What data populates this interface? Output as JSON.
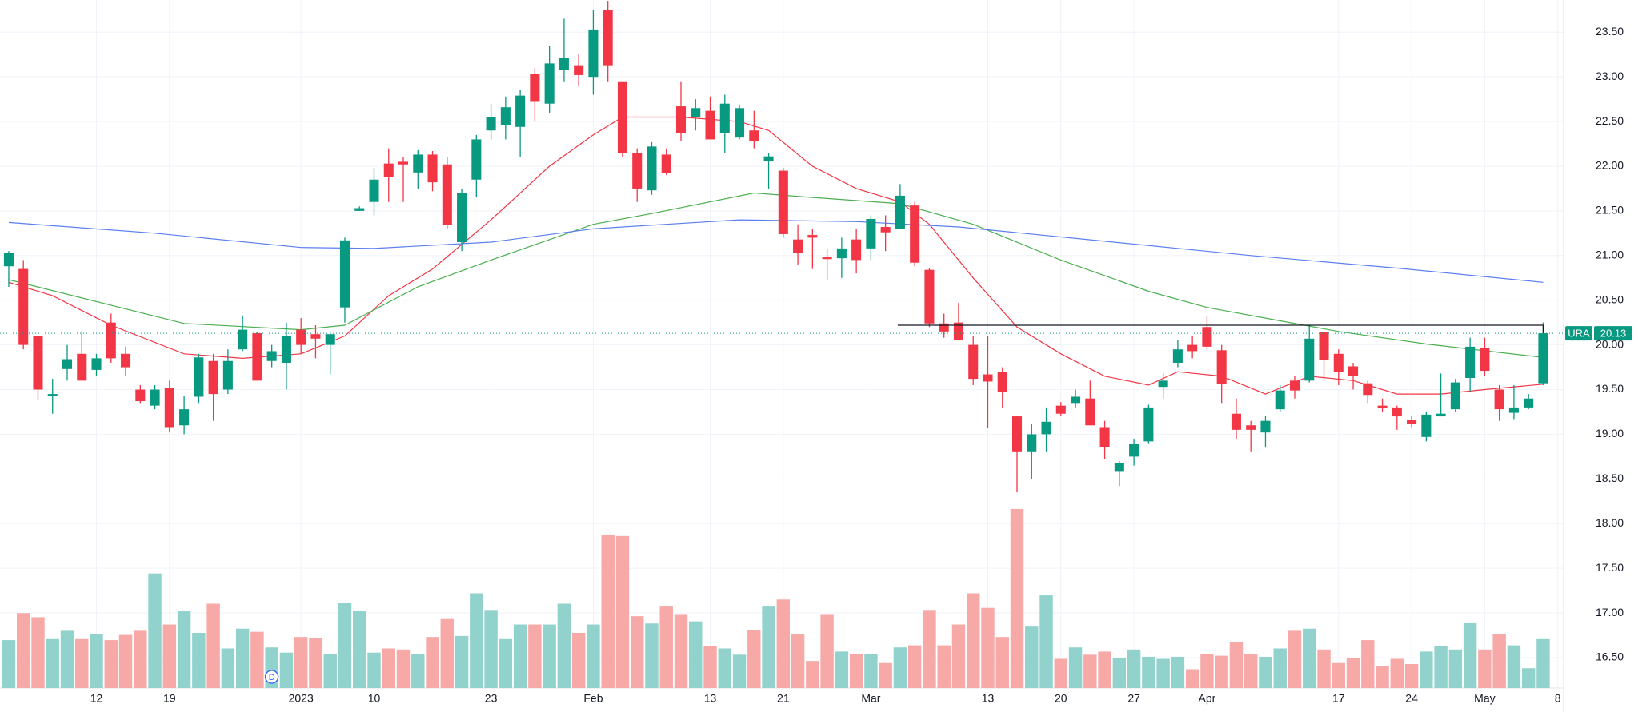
{
  "chart_data": {
    "type": "candlestick",
    "xlim": [
      -0.6,
      106.4
    ],
    "ylim": [
      16.16,
      23.86
    ],
    "vlim": [
      0,
      661
    ],
    "grid": true,
    "up_color": "#089981",
    "down_color": "#f23645",
    "volume_up_color": "#92d2cc",
    "volume_down_color": "#f7a9a7",
    "xticks": [
      {
        "value": 6,
        "label": "12"
      },
      {
        "value": 11,
        "label": "19"
      },
      {
        "value": 20,
        "label": "2023"
      },
      {
        "value": 25,
        "label": "10"
      },
      {
        "value": 33,
        "label": "23"
      },
      {
        "value": 40,
        "label": "Feb"
      },
      {
        "value": 48,
        "label": "13"
      },
      {
        "value": 53,
        "label": "21"
      },
      {
        "value": 59,
        "label": "Mar"
      },
      {
        "value": 67,
        "label": "13"
      },
      {
        "value": 72,
        "label": "20"
      },
      {
        "value": 77,
        "label": "27"
      },
      {
        "value": 82,
        "label": "Apr"
      },
      {
        "value": 91,
        "label": "17"
      },
      {
        "value": 96,
        "label": "24"
      },
      {
        "value": 101,
        "label": "May"
      },
      {
        "value": 106,
        "label": "8"
      }
    ],
    "yticks": [
      {
        "value": 16.5,
        "label": "16.50"
      },
      {
        "value": 17,
        "label": "17.00"
      },
      {
        "value": 17.5,
        "label": "17.50"
      },
      {
        "value": 18,
        "label": "18.00"
      },
      {
        "value": 18.5,
        "label": "18.50"
      },
      {
        "value": 19,
        "label": "19.00"
      },
      {
        "value": 19.5,
        "label": "19.50"
      },
      {
        "value": 20,
        "label": "20.00"
      },
      {
        "value": 20.5,
        "label": "20.50"
      },
      {
        "value": 21,
        "label": "21.00"
      },
      {
        "value": 21.5,
        "label": "21.50"
      },
      {
        "value": 22,
        "label": "22.00"
      },
      {
        "value": 22.5,
        "label": "22.50"
      },
      {
        "value": 23,
        "label": "23.00"
      },
      {
        "value": 23.5,
        "label": "23.50"
      }
    ],
    "open": [
      20.88,
      20.85,
      20.1,
      19.43,
      19.73,
      19.9,
      19.72,
      20.25,
      19.9,
      19.5,
      19.32,
      19.52,
      19.1,
      19.42,
      19.82,
      19.5,
      19.95,
      20.13,
      19.82,
      19.8,
      20.17,
      20.12,
      20.0,
      20.42,
      21.5,
      21.6,
      22.03,
      22.05,
      21.93,
      22.13,
      22.02,
      21.15,
      21.85,
      22.4,
      22.46,
      22.44,
      23.03,
      22.7,
      23.08,
      23.13,
      23.0,
      23.75,
      22.95,
      22.15,
      21.73,
      22.13,
      22.67,
      22.55,
      22.62,
      22.37,
      22.32,
      22.4,
      22.06,
      21.95,
      21.18,
      21.23,
      20.98,
      20.97,
      21.18,
      21.08,
      21.32,
      21.3,
      21.56,
      20.84,
      20.24,
      20.25,
      20.0,
      19.67,
      19.7,
      19.2,
      18.8,
      19.0,
      19.32,
      19.35,
      19.4,
      19.08,
      18.58,
      18.75,
      18.92,
      19.53,
      19.8,
      20.0,
      20.2,
      19.94,
      19.23,
      19.1,
      19.02,
      19.28,
      19.6,
      19.6,
      20.14,
      19.9,
      19.76,
      19.57,
      19.32,
      19.3,
      19.16,
      18.97,
      19.2,
      19.28,
      19.63,
      19.97,
      19.5,
      19.24,
      19.3,
      19.57
    ],
    "high": [
      21.05,
      20.95,
      20.1,
      19.62,
      20.0,
      20.15,
      19.9,
      20.35,
      19.98,
      19.55,
      19.55,
      19.6,
      19.43,
      19.9,
      19.9,
      19.95,
      20.33,
      20.15,
      20.0,
      20.25,
      20.3,
      20.22,
      20.15,
      21.2,
      21.55,
      21.98,
      22.2,
      22.1,
      22.18,
      22.17,
      22.1,
      21.75,
      22.35,
      22.7,
      22.78,
      22.85,
      23.1,
      23.35,
      23.65,
      23.25,
      23.75,
      23.85,
      22.95,
      22.2,
      22.27,
      22.2,
      22.95,
      22.75,
      22.78,
      22.8,
      22.68,
      22.62,
      22.15,
      21.98,
      21.35,
      21.3,
      21.08,
      21.2,
      21.3,
      21.45,
      21.45,
      21.8,
      21.6,
      20.86,
      20.35,
      20.47,
      20.1,
      20.1,
      19.75,
      19.2,
      19.12,
      19.3,
      19.36,
      19.5,
      19.6,
      19.15,
      18.7,
      18.95,
      19.33,
      19.68,
      20.05,
      20.1,
      20.33,
      20.0,
      19.4,
      19.15,
      19.2,
      19.55,
      19.65,
      20.22,
      20.15,
      19.95,
      19.8,
      19.6,
      19.4,
      19.32,
      19.2,
      19.25,
      19.68,
      19.62,
      20.08,
      20.08,
      19.55,
      19.55,
      19.45,
      20.25
    ],
    "low": [
      20.65,
      19.95,
      19.38,
      19.23,
      19.6,
      19.6,
      19.65,
      19.8,
      19.65,
      19.35,
      19.28,
      19.02,
      19.0,
      19.35,
      19.15,
      19.45,
      19.93,
      19.6,
      19.75,
      19.5,
      19.9,
      19.85,
      19.67,
      20.25,
      21.5,
      21.45,
      21.6,
      21.6,
      21.75,
      21.72,
      21.3,
      21.05,
      21.65,
      22.3,
      22.3,
      22.1,
      22.5,
      22.6,
      22.95,
      22.9,
      22.8,
      22.95,
      22.1,
      21.6,
      21.68,
      21.9,
      22.28,
      22.4,
      22.3,
      22.15,
      22.3,
      22.2,
      21.75,
      21.2,
      20.9,
      20.85,
      20.72,
      20.75,
      20.8,
      20.95,
      21.05,
      21.3,
      20.88,
      20.2,
      20.08,
      20.05,
      19.55,
      19.07,
      19.3,
      18.35,
      18.5,
      18.8,
      19.2,
      19.3,
      19.1,
      18.72,
      18.42,
      18.65,
      18.9,
      19.4,
      19.75,
      19.85,
      19.95,
      19.35,
      18.95,
      18.8,
      18.85,
      19.25,
      19.4,
      19.58,
      19.6,
      19.55,
      19.5,
      19.35,
      19.25,
      19.05,
      19.08,
      18.92,
      19.2,
      19.25,
      19.48,
      19.65,
      19.15,
      19.17,
      19.28,
      19.55
    ],
    "close": [
      21.03,
      20.0,
      19.5,
      19.45,
      19.84,
      19.6,
      19.85,
      19.85,
      19.75,
      19.37,
      19.5,
      19.08,
      19.28,
      19.86,
      19.45,
      19.82,
      20.17,
      19.6,
      19.93,
      20.1,
      20.0,
      20.07,
      20.12,
      21.17,
      21.53,
      21.85,
      21.88,
      22.02,
      22.13,
      21.82,
      21.34,
      21.7,
      22.3,
      22.55,
      22.66,
      22.79,
      22.72,
      23.15,
      23.21,
      23.02,
      23.53,
      23.13,
      22.15,
      21.75,
      22.22,
      21.92,
      22.37,
      22.65,
      22.3,
      22.7,
      22.65,
      22.28,
      22.11,
      21.24,
      21.03,
      21.2,
      20.96,
      21.08,
      20.95,
      21.41,
      21.26,
      21.67,
      20.92,
      20.24,
      20.15,
      20.05,
      19.62,
      19.59,
      19.47,
      18.8,
      19.0,
      19.14,
      19.23,
      19.42,
      19.1,
      18.86,
      18.68,
      18.89,
      19.3,
      19.6,
      19.95,
      19.93,
      19.98,
      19.56,
      19.05,
      19.05,
      19.15,
      19.49,
      19.49,
      20.07,
      19.83,
      19.7,
      19.65,
      19.44,
      19.29,
      19.2,
      19.12,
      19.22,
      19.23,
      19.58,
      19.98,
      19.71,
      19.28,
      19.3,
      19.4,
      20.13
    ],
    "volume": [
      46,
      72,
      68,
      47,
      55,
      47,
      52,
      46,
      51,
      55,
      110,
      61,
      74,
      53,
      81,
      38,
      57,
      54,
      39,
      34,
      49,
      48,
      33,
      82,
      74,
      34,
      38,
      37,
      33,
      49,
      67,
      50,
      91,
      75,
      47,
      61,
      61,
      61,
      81,
      53,
      61,
      147,
      146,
      69,
      62,
      79,
      71,
      64,
      40,
      38,
      32,
      56,
      79,
      85,
      52,
      26,
      71,
      35,
      33,
      33,
      24,
      39,
      41,
      75,
      41,
      61,
      91,
      77,
      49,
      172,
      59,
      89,
      28,
      39,
      32,
      35,
      29,
      37,
      30,
      28,
      30,
      18,
      33,
      31,
      44,
      33,
      30,
      38,
      55,
      57,
      37,
      24,
      29,
      46,
      21,
      28,
      23,
      35,
      40,
      37,
      63,
      37,
      52,
      41,
      19,
      47
    ],
    "moving_averages": [
      {
        "color": "#f23645",
        "x": [
          0,
          3,
          7,
          12,
          16,
          20,
          23,
          26,
          29,
          33,
          37,
          40,
          42,
          46,
          50,
          52,
          55,
          58,
          61,
          63,
          66,
          69,
          72,
          75,
          78,
          80,
          83,
          86,
          89,
          92,
          95,
          98,
          101,
          105
        ],
        "values": [
          20.7,
          20.55,
          20.22,
          19.9,
          19.85,
          19.9,
          20.1,
          20.55,
          20.85,
          21.4,
          22.0,
          22.35,
          22.55,
          22.55,
          22.5,
          22.4,
          22.0,
          21.75,
          21.6,
          21.35,
          20.75,
          20.2,
          19.9,
          19.65,
          19.55,
          19.7,
          19.65,
          19.45,
          19.65,
          19.6,
          19.45,
          19.45,
          19.5,
          19.56
        ]
      },
      {
        "color": "#4caf50",
        "x": [
          0,
          12,
          20,
          23,
          28,
          33,
          40,
          44,
          51,
          55,
          61,
          66,
          72,
          78,
          82,
          86,
          91,
          97,
          105
        ],
        "values": [
          20.73,
          20.24,
          20.17,
          20.22,
          20.65,
          20.95,
          21.35,
          21.47,
          21.7,
          21.65,
          21.58,
          21.35,
          20.95,
          20.6,
          20.42,
          20.3,
          20.15,
          20.01,
          19.86
        ]
      },
      {
        "color": "#5b7ff0",
        "x": [
          0,
          10,
          20,
          25,
          33,
          40,
          50,
          58,
          65,
          75,
          85,
          95,
          105
        ],
        "values": [
          21.37,
          21.25,
          21.09,
          21.08,
          21.15,
          21.3,
          21.4,
          21.38,
          21.32,
          21.16,
          21.0,
          20.86,
          20.7
        ]
      }
    ],
    "level": {
      "value": 20.22,
      "x": [
        61,
        105
      ]
    },
    "last_price": {
      "symbol": "URA",
      "value": 20.13
    },
    "markers": [
      {
        "x": 18,
        "label": "D"
      }
    ]
  }
}
